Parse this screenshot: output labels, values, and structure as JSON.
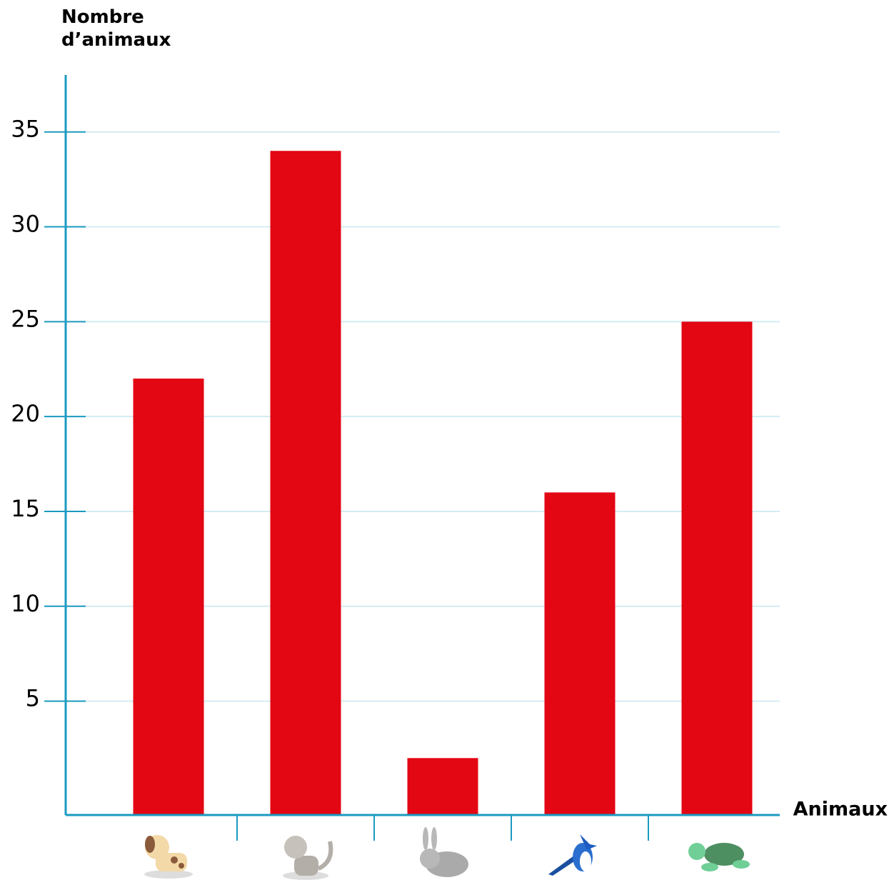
{
  "chart_data": {
    "type": "bar",
    "y_label": "Nombre d’animaux",
    "x_label": "Animaux",
    "categories": [
      null,
      null,
      null,
      null,
      null
    ],
    "values": [
      22,
      34,
      2,
      16,
      25
    ],
    "color": "#e30613",
    "ylim": [
      -1,
      38
    ],
    "yticks": [
      5,
      10,
      15,
      20,
      25,
      30,
      35
    ],
    "grid": true
  }
}
